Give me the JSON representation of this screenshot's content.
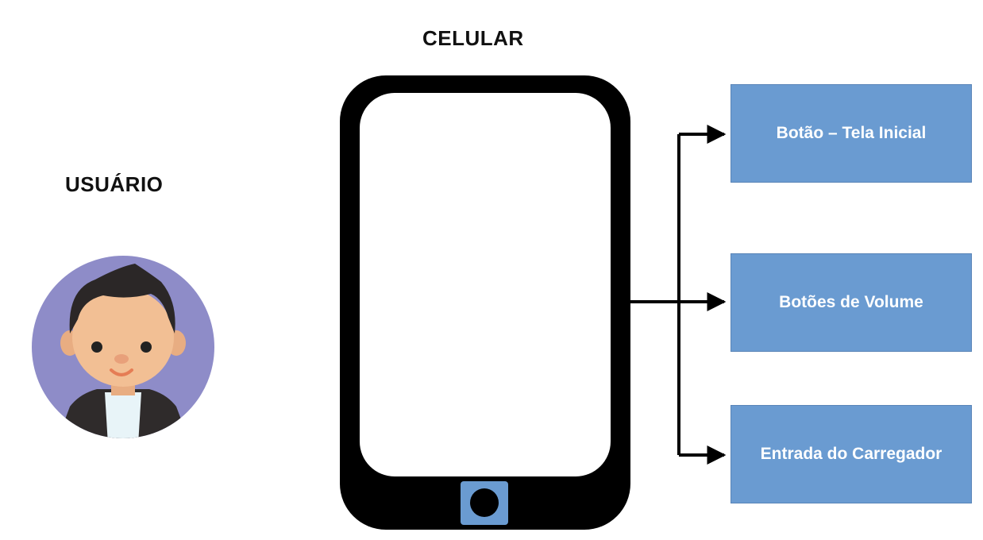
{
  "diagram": {
    "phone_title": "CELULAR",
    "user_title": "USUÁRIO",
    "components": [
      {
        "label": "Botão – Tela Inicial"
      },
      {
        "label": "Botões de Volume"
      },
      {
        "label": "Entrada do Carregador"
      }
    ]
  },
  "colors": {
    "box_fill": "#6a9bd1",
    "phone_body": "#000000",
    "home_button": "#6a9bd1",
    "avatar_background": "#8e8cc8"
  },
  "icons": [
    "user-avatar-icon",
    "smartphone-icon"
  ]
}
